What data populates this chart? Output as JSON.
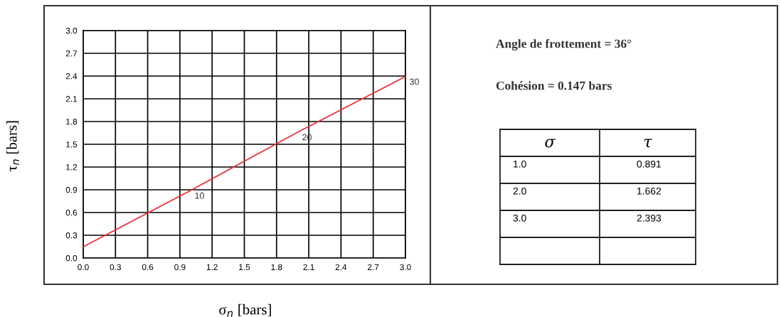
{
  "chart_data": {
    "type": "line",
    "xlabel": "σ$_{n}$ [bars]",
    "ylabel": "τ$_{n}$ [bars]",
    "x": [
      0,
      1,
      2,
      3
    ],
    "series": [
      {
        "color": "#e8323c",
        "values": [
          0.147,
          0.891,
          1.662,
          2.393
        ]
      }
    ],
    "xlim": [
      0,
      3
    ],
    "ylim": [
      0,
      3
    ],
    "xticks": [
      {
        "value": 0,
        "label": "0.0"
      },
      0.3,
      0.6,
      0.9,
      1.2,
      1.5,
      1.8,
      2.1,
      2.4,
      2.7,
      {
        "value": 3,
        "label": "3.0"
      }
    ],
    "yticks": [
      {
        "value": 0,
        "label": "0.0"
      },
      0.3,
      0.6,
      0.9,
      1.2,
      1.5,
      1.8,
      2.1,
      2.4,
      2.7,
      {
        "value": 3,
        "label": "3.0"
      }
    ],
    "grid": true,
    "marker": "none",
    "line_style": "solid",
    "annotations": [
      "Angle de frottement = 36°",
      "Cohésion = 0.147 bars",
      "σ",
      "τ",
      "1.0",
      "0.891",
      "2.0",
      "1.662",
      "3.0",
      "2.393",
      {
        "text": "10",
        "x": 1.0,
        "y": 0.891
      },
      {
        "text": "20",
        "x": 2.0,
        "y": 1.662
      },
      {
        "text": "30",
        "x": 3.0,
        "y": 2.393
      }
    ]
  }
}
